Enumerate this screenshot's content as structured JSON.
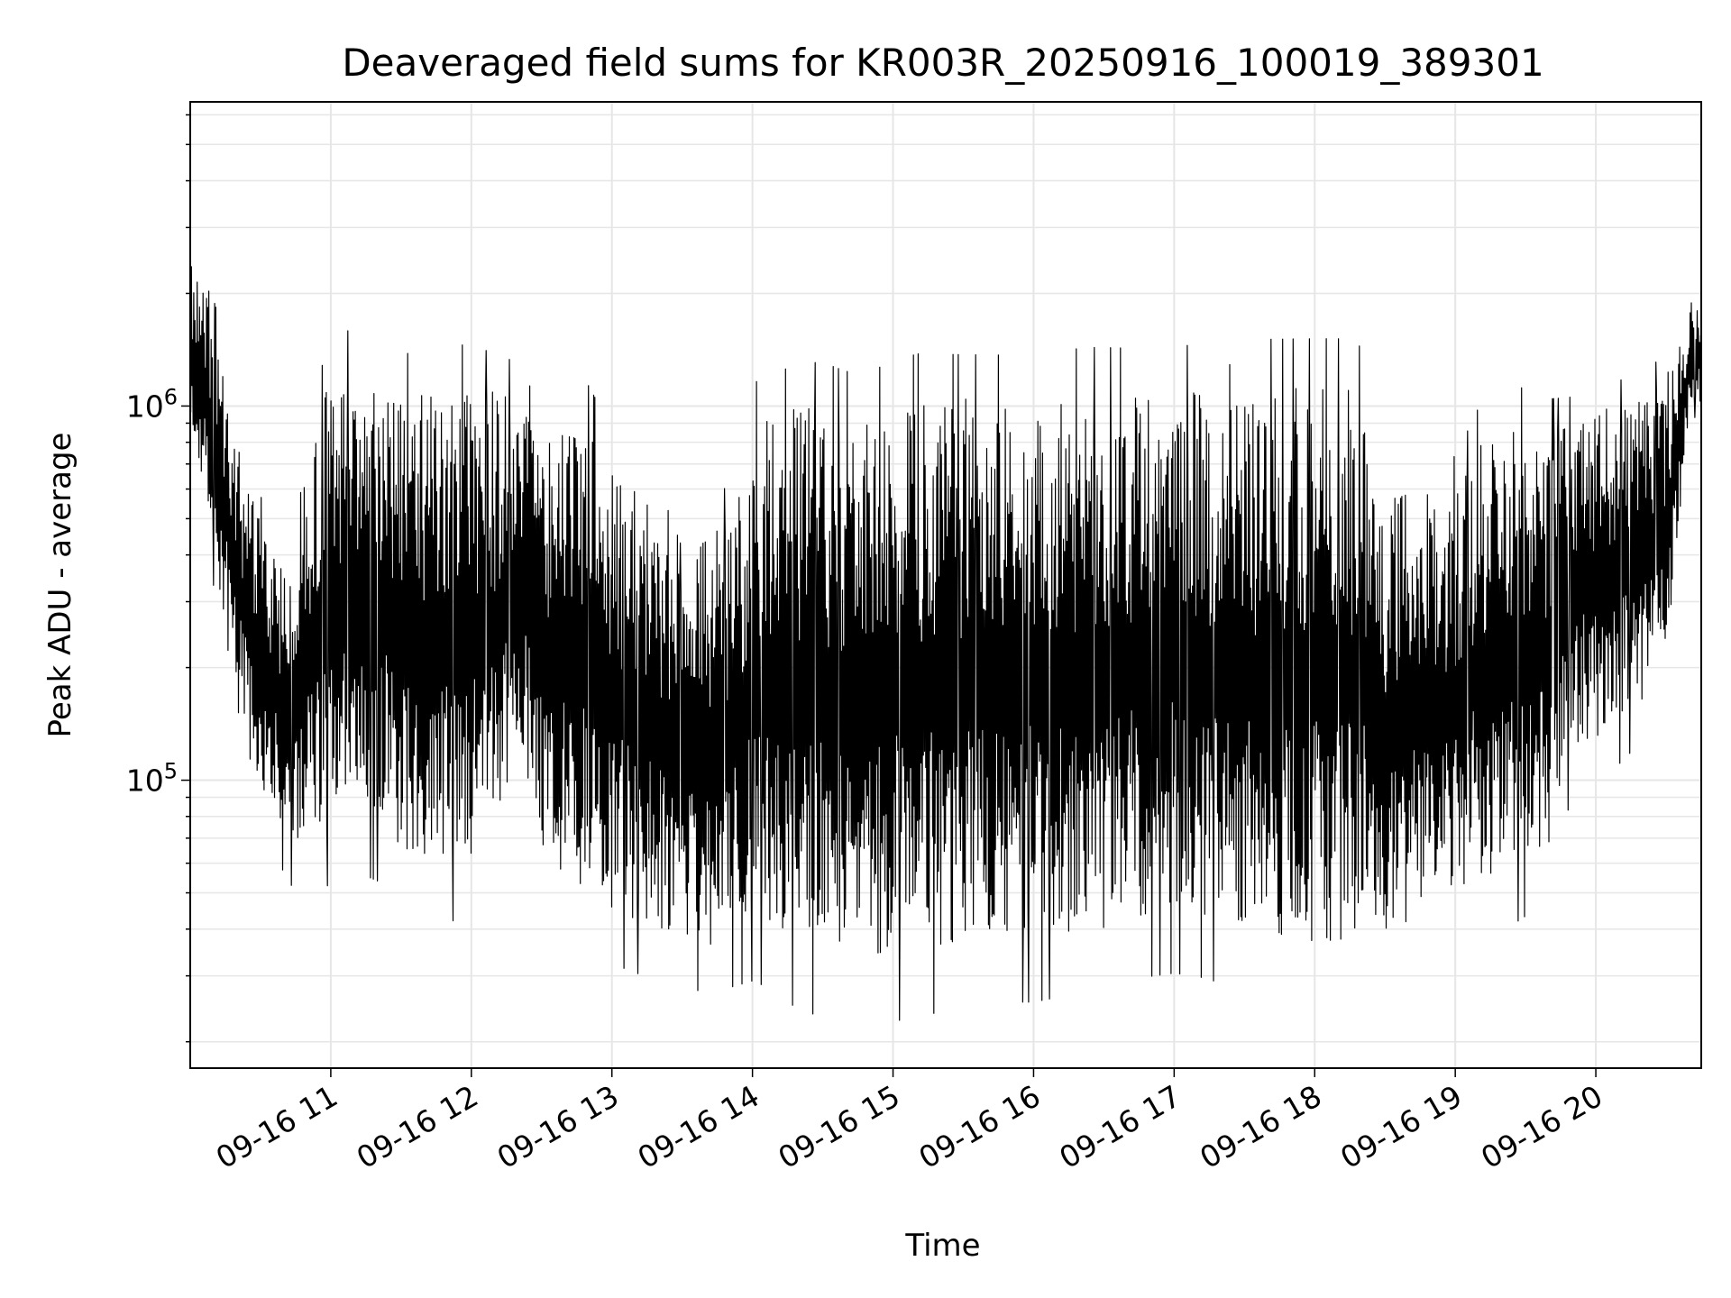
{
  "chart_data": {
    "type": "line",
    "title": "Deaveraged field sums for KR003R_20250916_100019_389301",
    "xlabel": "Time",
    "ylabel": "Peak ADU - average",
    "y_scale": "log",
    "grid": true,
    "legend": "none",
    "line_color": "#000000",
    "grid_color": "#e6e6e6",
    "xlim": [
      "2025-09-16 10:00",
      "2025-09-16 20:45"
    ],
    "ylim": [
      17000,
      6500000
    ],
    "x_ticks": [
      "09-16 11",
      "09-16 12",
      "09-16 13",
      "09-16 14",
      "09-16 15",
      "09-16 16",
      "09-16 17",
      "09-16 18",
      "09-16 19",
      "09-16 20"
    ],
    "y_ticks": [
      {
        "base": "10",
        "exp": "5",
        "value": 100000
      },
      {
        "base": "10",
        "exp": "6",
        "value": 1000000
      }
    ],
    "series": [
      {
        "x": [
          "2025-09-16 10:00",
          "2025-09-16 10:10",
          "2025-09-16 10:20",
          "2025-09-16 10:30",
          "2025-09-16 10:40",
          "2025-09-16 10:50",
          "2025-09-16 11:00",
          "2025-09-16 11:10",
          "2025-09-16 11:20",
          "2025-09-16 11:30",
          "2025-09-16 11:40",
          "2025-09-16 11:50",
          "2025-09-16 12:00",
          "2025-09-16 12:10",
          "2025-09-16 12:20",
          "2025-09-16 12:30",
          "2025-09-16 12:40",
          "2025-09-16 12:50",
          "2025-09-16 13:00",
          "2025-09-16 13:10",
          "2025-09-16 13:20",
          "2025-09-16 13:30",
          "2025-09-16 13:40",
          "2025-09-16 13:50",
          "2025-09-16 14:00",
          "2025-09-16 14:10",
          "2025-09-16 14:20",
          "2025-09-16 14:30",
          "2025-09-16 14:40",
          "2025-09-16 14:50",
          "2025-09-16 15:00",
          "2025-09-16 15:10",
          "2025-09-16 15:20",
          "2025-09-16 15:30",
          "2025-09-16 15:40",
          "2025-09-16 15:50",
          "2025-09-16 16:00",
          "2025-09-16 16:10",
          "2025-09-16 16:20",
          "2025-09-16 16:30",
          "2025-09-16 16:40",
          "2025-09-16 16:50",
          "2025-09-16 17:00",
          "2025-09-16 17:10",
          "2025-09-16 17:20",
          "2025-09-16 17:30",
          "2025-09-16 17:40",
          "2025-09-16 17:50",
          "2025-09-16 18:00",
          "2025-09-16 18:10",
          "2025-09-16 18:20",
          "2025-09-16 18:30",
          "2025-09-16 18:40",
          "2025-09-16 18:50",
          "2025-09-16 19:00",
          "2025-09-16 19:10",
          "2025-09-16 19:20",
          "2025-09-16 19:30",
          "2025-09-16 19:40",
          "2025-09-16 19:50",
          "2025-09-16 20:00",
          "2025-09-16 20:10",
          "2025-09-16 20:20",
          "2025-09-16 20:30",
          "2025-09-16 20:40"
        ],
        "upper": [
          2500000,
          2000000,
          800000,
          500000,
          400000,
          800000,
          1200000,
          1300000,
          1200000,
          1100000,
          1100000,
          1150000,
          1150000,
          1100000,
          1100000,
          800000,
          900000,
          900000,
          700000,
          600000,
          500000,
          350000,
          450000,
          500000,
          900000,
          950000,
          1000000,
          1000000,
          950000,
          950000,
          1000000,
          1050000,
          1050000,
          1050000,
          1050000,
          1050000,
          1050000,
          1050000,
          1100000,
          1100000,
          1100000,
          1100000,
          1150000,
          1100000,
          1000000,
          1000000,
          1150000,
          1150000,
          1150000,
          1150000,
          1100000,
          550000,
          600000,
          600000,
          600000,
          800000,
          900000,
          900000,
          850000,
          900000,
          1000000,
          1000000,
          1050000,
          1200000,
          1800000
        ],
        "lower": [
          900000,
          400000,
          150000,
          90000,
          70000,
          60000,
          75000,
          80000,
          75000,
          65000,
          60000,
          60000,
          60000,
          65000,
          130000,
          65000,
          55000,
          50000,
          45000,
          42000,
          40000,
          38000,
          36000,
          38000,
          42000,
          40000,
          36000,
          35000,
          35000,
          34000,
          34000,
          35000,
          36000,
          37000,
          38000,
          38000,
          38000,
          39000,
          40000,
          40000,
          42000,
          44000,
          45000,
          44000,
          42000,
          40000,
          39000,
          38000,
          37000,
          37000,
          38000,
          40000,
          42000,
          45000,
          50000,
          55000,
          55000,
          60000,
          65000,
          120000,
          130000,
          140000,
          160000,
          200000,
          1000000
        ]
      }
    ]
  }
}
